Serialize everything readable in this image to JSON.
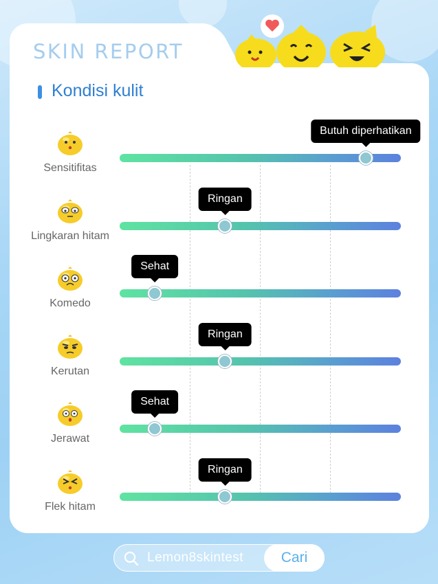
{
  "header": {
    "title": "SKIN REPORT",
    "section": "Kondisi kulit"
  },
  "rows": [
    {
      "label": "Sensitifitas",
      "level": 0.875,
      "tip": "Butuh diperhatikan"
    },
    {
      "label": "Lingkaran hitam",
      "level": 0.375,
      "tip": "Ringan"
    },
    {
      "label": "Komedo",
      "level": 0.125,
      "tip": "Sehat"
    },
    {
      "label": "Kerutan",
      "level": 0.375,
      "tip": "Ringan"
    },
    {
      "label": "Jerawat",
      "level": 0.125,
      "tip": "Sehat"
    },
    {
      "label": "Flek hitam",
      "level": 0.375,
      "tip": "Ringan"
    }
  ],
  "search": {
    "query": "Lemon8skintest",
    "button": "Cari"
  },
  "colors": {
    "accent": "#2f7fd1",
    "track_start": "#5fe3a1",
    "track_end": "#5c81de",
    "mascot": "#f6dc1c"
  },
  "icons": [
    "heart-icon",
    "lemon-mascot-icon",
    "lemon-face-icon",
    "search-icon"
  ]
}
